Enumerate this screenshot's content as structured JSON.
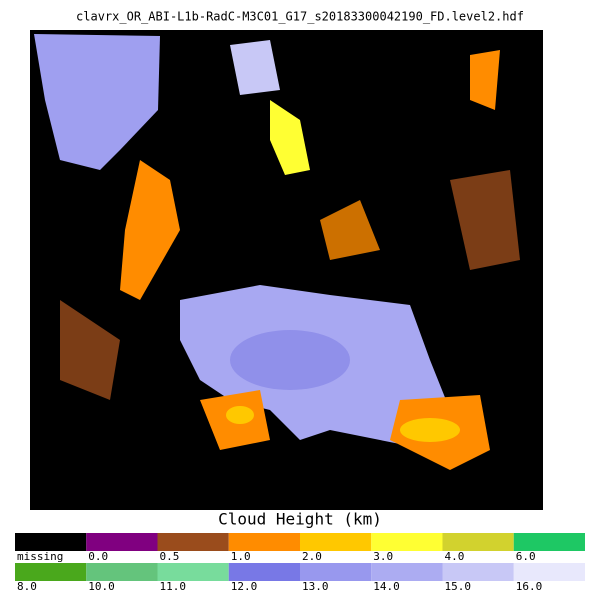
{
  "header": {
    "title": "clavrx_OR_ABI-L1b-RadC-M3C01_G17_s20183300042190_FD.level2.hdf"
  },
  "colorbar": {
    "label": "Cloud Height (km)",
    "rows": [
      [
        {
          "label": "missing",
          "color": "#000000"
        },
        {
          "label": "0.0",
          "color": "#800080"
        },
        {
          "label": "0.5",
          "color": "#9a4c1c"
        },
        {
          "label": "1.0",
          "color": "#ff8c00"
        },
        {
          "label": "2.0",
          "color": "#ffc800"
        },
        {
          "label": "3.0",
          "color": "#ffff33"
        },
        {
          "label": "4.0",
          "color": "#d2d22e"
        },
        {
          "label": "6.0",
          "color": "#1ec864"
        }
      ],
      [
        {
          "label": "8.0",
          "color": "#4aa81c"
        },
        {
          "label": "10.0",
          "color": "#64c47c"
        },
        {
          "label": "11.0",
          "color": "#78dc9c"
        },
        {
          "label": "12.0",
          "color": "#7878e6"
        },
        {
          "label": "13.0",
          "color": "#9898ee"
        },
        {
          "label": "14.0",
          "color": "#acacf2"
        },
        {
          "label": "15.0",
          "color": "#c8c8f6"
        },
        {
          "label": "16.0",
          "color": "#e8e8fc"
        }
      ]
    ]
  }
}
